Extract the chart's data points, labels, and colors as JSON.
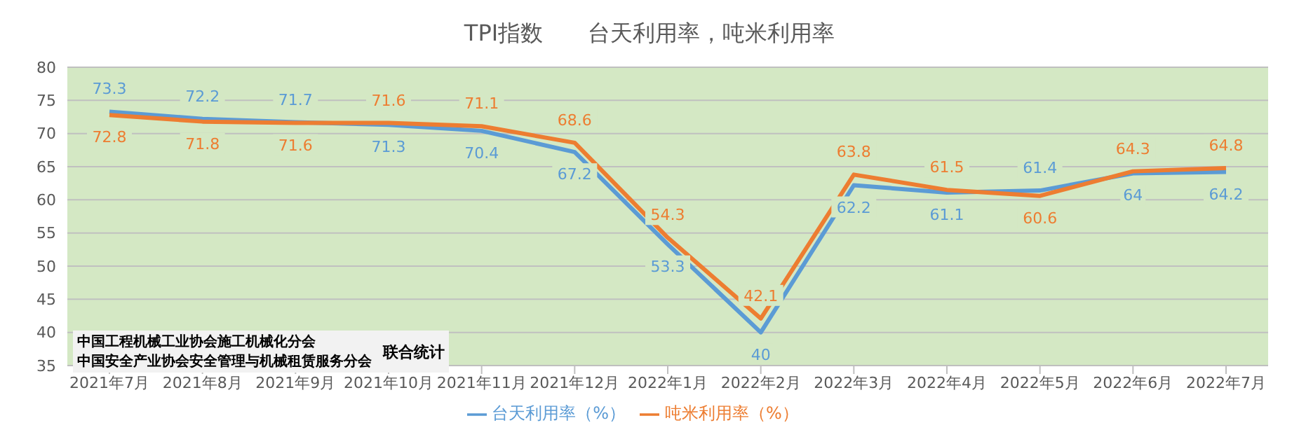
{
  "chart_data": {
    "type": "line",
    "title": "TPI指数　　台天利用率，吨米利用率",
    "categories": [
      "2021年7月",
      "2021年8月",
      "2021年9月",
      "2021年10月",
      "2021年11月",
      "2021年12月",
      "2022年1月",
      "2022年2月",
      "2022年3月",
      "2022年4月",
      "2022年5月",
      "2022年6月",
      "2022年7月"
    ],
    "series": [
      {
        "name": "台天利用率（%）",
        "color": "#5b9bd5",
        "values": [
          73.3,
          72.2,
          71.7,
          71.3,
          70.4,
          67.2,
          53.3,
          40,
          62.2,
          61.1,
          61.4,
          64,
          64.2
        ]
      },
      {
        "name": "吨米利用率（%）",
        "color": "#ed7d31",
        "values": [
          72.8,
          71.8,
          71.6,
          71.6,
          71.1,
          68.6,
          54.3,
          42.1,
          63.8,
          61.5,
          60.6,
          64.3,
          64.8
        ]
      }
    ],
    "ylim": [
      35,
      80
    ],
    "yticks": [
      35,
      40,
      45,
      50,
      55,
      60,
      65,
      70,
      75,
      80
    ],
    "grid": "y",
    "legend": "bottom",
    "data_labels": true,
    "marker": "none",
    "line_style": "solid",
    "annotations": [
      "中国工程机械工业协会施工机械化分会",
      "中国安全产业协会安全管理与机械租赁服务分会",
      "联合统计"
    ]
  }
}
